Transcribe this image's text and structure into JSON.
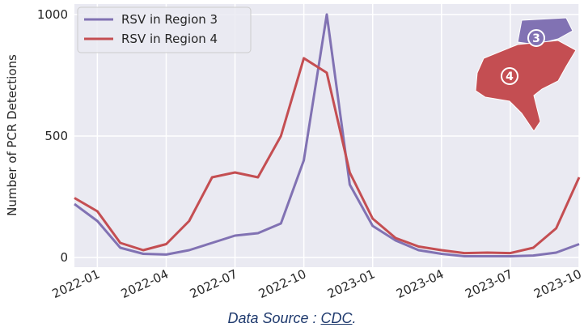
{
  "chart_data": {
    "type": "line",
    "y_label": "Number of PCR Detections",
    "x": [
      "2021-12",
      "2022-01",
      "2022-02",
      "2022-03",
      "2022-04",
      "2022-05",
      "2022-06",
      "2022-07",
      "2022-08",
      "2022-09",
      "2022-10",
      "2022-11",
      "2022-12",
      "2023-01",
      "2023-02",
      "2023-03",
      "2023-04",
      "2023-05",
      "2023-06",
      "2023-07",
      "2023-08",
      "2023-09",
      "2023-10"
    ],
    "series": [
      {
        "name": "RSV in Region 3",
        "color": "#8172b3",
        "values": [
          220,
          150,
          40,
          15,
          12,
          30,
          60,
          90,
          100,
          140,
          400,
          1000,
          300,
          130,
          70,
          30,
          15,
          5,
          5,
          5,
          8,
          20,
          55
        ]
      },
      {
        "name": "RSV in Region 4",
        "color": "#c44e52",
        "values": [
          245,
          190,
          60,
          30,
          55,
          150,
          330,
          350,
          330,
          500,
          820,
          760,
          350,
          160,
          80,
          45,
          30,
          18,
          20,
          18,
          40,
          120,
          330
        ]
      }
    ],
    "xlim": [
      "2021-12",
      "2023-10"
    ],
    "xticks": [
      "2022-01",
      "2022-04",
      "2022-07",
      "2022-10",
      "2023-01",
      "2023-04",
      "2023-07",
      "2023-10"
    ],
    "ylim": [
      -40,
      1043
    ],
    "yticks": [
      0,
      500,
      1000
    ],
    "grid": true,
    "legend": "upper-left",
    "map_labels": [
      "3",
      "4"
    ],
    "source_prefix": "Data Source : ",
    "source_link": "CDC",
    "source_suffix": "."
  }
}
